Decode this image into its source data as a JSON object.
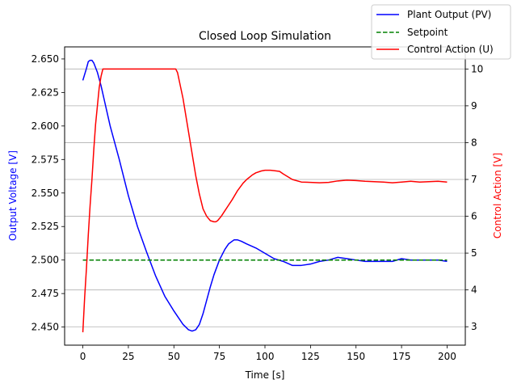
{
  "chart_data": {
    "type": "line",
    "title": "Closed Loop Simulation",
    "xlabel": "Time [s]",
    "ylabel_left": "Output Voltage [V]",
    "ylabel_right": "Control Action [V]",
    "xlim": [
      -10,
      210
    ],
    "ylim_left": [
      2.4365,
      2.659
    ],
    "ylim_right": [
      2.5,
      10.6
    ],
    "x_ticks": [
      0,
      25,
      50,
      75,
      100,
      125,
      150,
      175,
      200
    ],
    "x_tick_labels": [
      "0",
      "25",
      "50",
      "75",
      "100",
      "125",
      "150",
      "175",
      "200"
    ],
    "y_left_ticks": [
      2.45,
      2.475,
      2.5,
      2.525,
      2.55,
      2.575,
      2.6,
      2.625,
      2.65
    ],
    "y_left_tick_labels": [
      "2.450",
      "2.475",
      "2.500",
      "2.525",
      "2.550",
      "2.575",
      "2.600",
      "2.625",
      "2.650"
    ],
    "y_right_ticks": [
      3,
      4,
      5,
      6,
      7,
      8,
      9,
      10
    ],
    "y_right_tick_labels": [
      "3",
      "4",
      "5",
      "6",
      "7",
      "8",
      "9",
      "10"
    ],
    "grid": "horizontal lines at right-axis ticks",
    "legend_placement": "top-right",
    "colors": {
      "plant_output": "#0000ff",
      "setpoint": "#008000",
      "control_action": "#ff0000",
      "left_axis_label": "#0000ff",
      "right_axis_label": "#ff0000",
      "grid": "#b0b0b0"
    },
    "series": [
      {
        "name": "Plant Output (PV)",
        "axis": "left",
        "style": "solid",
        "x": [
          0,
          2,
          3,
          4,
          5,
          6,
          8,
          10,
          12,
          15,
          20,
          25,
          30,
          35,
          40,
          45,
          50,
          55,
          58,
          60,
          62,
          64,
          66,
          68,
          70,
          72,
          75,
          78,
          80,
          83,
          85,
          87,
          90,
          95,
          100,
          105,
          110,
          115,
          120,
          125,
          130,
          135,
          140,
          145,
          150,
          155,
          160,
          165,
          170,
          175,
          180,
          185,
          190,
          195,
          200
        ],
        "y": [
          2.634,
          2.643,
          2.648,
          2.649,
          2.649,
          2.647,
          2.64,
          2.63,
          2.618,
          2.6,
          2.575,
          2.548,
          2.525,
          2.506,
          2.488,
          2.473,
          2.462,
          2.452,
          2.448,
          2.447,
          2.448,
          2.452,
          2.46,
          2.47,
          2.48,
          2.489,
          2.5,
          2.508,
          2.512,
          2.515,
          2.515,
          2.514,
          2.512,
          2.509,
          2.505,
          2.501,
          2.499,
          2.496,
          2.496,
          2.497,
          2.499,
          2.5,
          2.502,
          2.501,
          2.5,
          2.499,
          2.499,
          2.499,
          2.499,
          2.501,
          2.5,
          2.5,
          2.5,
          2.5,
          2.499
        ]
      },
      {
        "name": "Setpoint",
        "axis": "left",
        "style": "dashed",
        "x": [
          0,
          200
        ],
        "y": [
          2.5,
          2.5
        ]
      },
      {
        "name": "Control Action (U)",
        "axis": "right",
        "style": "solid",
        "x": [
          0,
          1,
          2,
          3,
          4,
          5,
          6,
          7,
          8,
          9,
          10,
          11,
          12,
          15,
          20,
          25,
          30,
          35,
          40,
          45,
          50,
          51,
          52,
          55,
          58,
          60,
          62,
          64,
          66,
          68,
          70,
          72,
          73,
          74,
          76,
          78,
          80,
          82,
          85,
          88,
          90,
          93,
          95,
          98,
          100,
          103,
          105,
          108,
          110,
          115,
          120,
          125,
          130,
          135,
          140,
          145,
          150,
          155,
          160,
          165,
          170,
          175,
          180,
          185,
          190,
          195,
          200
        ],
        "y": [
          2.85,
          3.8,
          4.6,
          5.5,
          6.3,
          7.0,
          7.8,
          8.5,
          9.0,
          9.5,
          9.8,
          10.0,
          10.0,
          10.0,
          10.0,
          10.0,
          10.0,
          10.0,
          10.0,
          10.0,
          10.0,
          10.0,
          9.9,
          9.2,
          8.3,
          7.7,
          7.1,
          6.6,
          6.2,
          6.0,
          5.88,
          5.85,
          5.85,
          5.88,
          6.0,
          6.15,
          6.3,
          6.45,
          6.7,
          6.9,
          7.0,
          7.12,
          7.18,
          7.23,
          7.25,
          7.25,
          7.24,
          7.22,
          7.15,
          7.0,
          6.93,
          6.92,
          6.91,
          6.92,
          6.96,
          6.98,
          6.97,
          6.95,
          6.94,
          6.93,
          6.91,
          6.93,
          6.95,
          6.93,
          6.94,
          6.95,
          6.93
        ]
      }
    ]
  }
}
